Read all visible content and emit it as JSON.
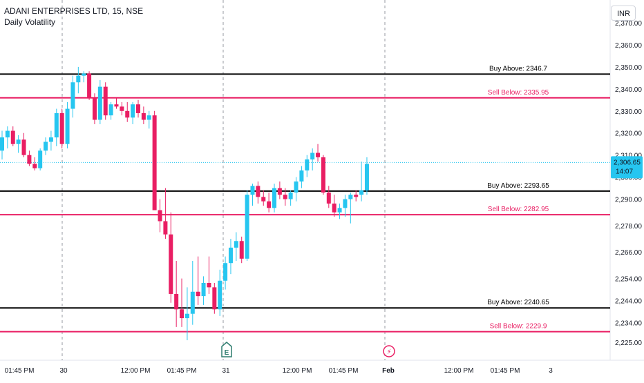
{
  "header": {
    "title": "ADANI ENTERPRISES LTD, 15, NSE",
    "indicator": "Daily Volatility"
  },
  "currency": "INR",
  "price_label": {
    "value": "2,306.65",
    "countdown": "14:07"
  },
  "colors": {
    "up": "#26c6f0",
    "down": "#e91e63",
    "buy_line": "#000000",
    "sell_line": "#e91e63",
    "current_price": "#26c6f0",
    "axis_text": "#131722"
  },
  "chart_data": {
    "type": "candlestick",
    "ylim": [
      2221,
      2370
    ],
    "y_ticks": [
      2225,
      2234,
      2244,
      2254,
      2266,
      2278,
      2290,
      2300,
      2310,
      2320,
      2330,
      2340,
      2350,
      2360,
      2370
    ],
    "x_ticks": [
      "01:45 PM",
      "30",
      "12:00 PM",
      "01:45 PM",
      "31",
      "12:00 PM",
      "01:45 PM",
      "Feb",
      "12:00 PM",
      "01:45 PM",
      "3"
    ],
    "levels": [
      {
        "label": "Buy Above: 2346.7",
        "value": 2346.7,
        "kind": "buy"
      },
      {
        "label": "Sell Below: 2335.95",
        "value": 2335.95,
        "kind": "sell"
      },
      {
        "label": "Buy Above: 2293.65",
        "value": 2293.65,
        "kind": "buy"
      },
      {
        "label": "Sell Below: 2282.95",
        "value": 2282.95,
        "kind": "sell"
      },
      {
        "label": "Buy Above: 2240.65",
        "value": 2240.65,
        "kind": "buy"
      },
      {
        "label": "Sell Below: 2229.9",
        "value": 2229.9,
        "kind": "sell"
      }
    ],
    "current_price": 2306.65,
    "event_markers": [
      {
        "label": "E",
        "name": "earnings"
      },
      {
        "label": "⚡",
        "name": "dividend-split"
      }
    ],
    "candles": [
      [
        2312,
        2321,
        2308,
        2318
      ],
      [
        2318,
        2323,
        2313,
        2321
      ],
      [
        2321,
        2323,
        2314,
        2315
      ],
      [
        2315,
        2319,
        2311,
        2317
      ],
      [
        2317,
        2320,
        2309,
        2310
      ],
      [
        2310,
        2312,
        2305,
        2306
      ],
      [
        2306,
        2309,
        2303,
        2304
      ],
      [
        2304,
        2313,
        2303,
        2312
      ],
      [
        2312,
        2318,
        2310,
        2316
      ],
      [
        2316,
        2321,
        2312,
        2318
      ],
      [
        2318,
        2331,
        2314,
        2329
      ],
      [
        2329,
        2331,
        2313,
        2315
      ],
      [
        2315,
        2334,
        2313,
        2331
      ],
      [
        2331,
        2346,
        2327,
        2343
      ],
      [
        2343,
        2350,
        2338,
        2346
      ],
      [
        2346,
        2348,
        2343,
        2347
      ],
      [
        2347,
        2348,
        2335,
        2336
      ],
      [
        2336,
        2338,
        2324,
        2326
      ],
      [
        2326,
        2344,
        2324,
        2341
      ],
      [
        2341,
        2343,
        2326,
        2328
      ],
      [
        2328,
        2334,
        2326,
        2333
      ],
      [
        2333,
        2336,
        2331,
        2332
      ],
      [
        2332,
        2334,
        2328,
        2330
      ],
      [
        2330,
        2334,
        2325,
        2327
      ],
      [
        2327,
        2334,
        2324,
        2333
      ],
      [
        2333,
        2335,
        2327,
        2329
      ],
      [
        2329,
        2332,
        2324,
        2326
      ],
      [
        2326,
        2330,
        2322,
        2328
      ],
      [
        2328,
        2330,
        2285,
        2285
      ],
      [
        2285,
        2290,
        2275,
        2280
      ],
      [
        2280,
        2295,
        2272,
        2274
      ],
      [
        2274,
        2284,
        2243,
        2247
      ],
      [
        2247,
        2262,
        2232,
        2240
      ],
      [
        2240,
        2254,
        2232,
        2236
      ],
      [
        2236,
        2250,
        2226,
        2238
      ],
      [
        2238,
        2262,
        2233,
        2248
      ],
      [
        2248,
        2264,
        2242,
        2246
      ],
      [
        2246,
        2255,
        2242,
        2252
      ],
      [
        2252,
        2264,
        2247,
        2250
      ],
      [
        2250,
        2252,
        2238,
        2240
      ],
      [
        2240,
        2258,
        2237,
        2253
      ],
      [
        2253,
        2264,
        2249,
        2261
      ],
      [
        2261,
        2272,
        2256,
        2268
      ],
      [
        2268,
        2275,
        2262,
        2271
      ],
      [
        2271,
        2273,
        2261,
        2263
      ],
      [
        2263,
        2294,
        2262,
        2292
      ],
      [
        2292,
        2297,
        2287,
        2296
      ],
      [
        2296,
        2298,
        2288,
        2291
      ],
      [
        2291,
        2294,
        2287,
        2289
      ],
      [
        2289,
        2293,
        2284,
        2286
      ],
      [
        2286,
        2297,
        2284,
        2295
      ],
      [
        2295,
        2298,
        2290,
        2292
      ],
      [
        2292,
        2295,
        2287,
        2290
      ],
      [
        2290,
        2294,
        2287,
        2293
      ],
      [
        2293,
        2300,
        2289,
        2298
      ],
      [
        2298,
        2305,
        2295,
        2303
      ],
      [
        2303,
        2310,
        2300,
        2308
      ],
      [
        2308,
        2313,
        2303,
        2311
      ],
      [
        2311,
        2315,
        2307,
        2309
      ],
      [
        2309,
        2310,
        2292,
        2293
      ],
      [
        2293,
        2296,
        2286,
        2288
      ],
      [
        2288,
        2292,
        2282,
        2284
      ],
      [
        2284,
        2288,
        2281,
        2286
      ],
      [
        2286,
        2292,
        2282,
        2290
      ],
      [
        2290,
        2293,
        2279,
        2292
      ],
      [
        2292,
        2294,
        2289,
        2291
      ],
      [
        2292,
        2307,
        2289,
        2294
      ],
      [
        2294,
        2309,
        2292,
        2306
      ]
    ]
  }
}
